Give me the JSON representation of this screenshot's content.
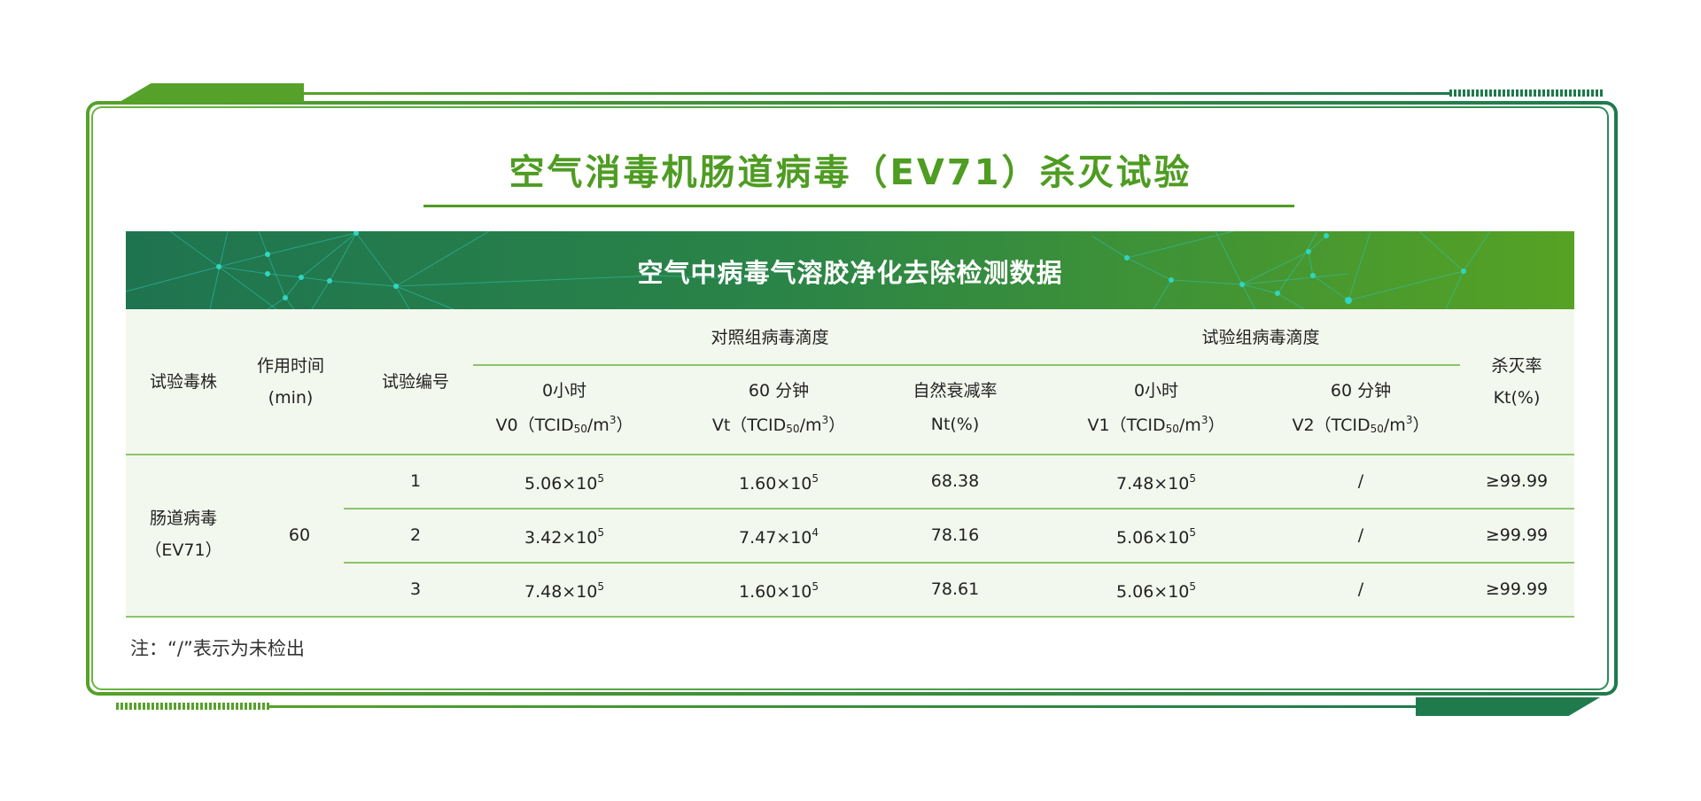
{
  "title": "空气消毒机肠道病毒（EV71）杀灭试验",
  "banner_title": "空气中病毒气溶胶净化去除检测数据",
  "colors": {
    "accent_green": "#4e9c22",
    "dark_green": "#1f7a4c",
    "table_bg": "#f3f8ee",
    "rule": "#8cc46a"
  },
  "table": {
    "headers": {
      "strain": "试验毒株",
      "time_1": "作用时间",
      "time_2": "(min)",
      "test_no": "试验编号",
      "control_group": "对照组病毒滴度",
      "test_group": "试验组病毒滴度",
      "v0_1": "0小时",
      "v0_2": "V0（TCID",
      "v0_sub": "50",
      "v0_3": "/m",
      "v0_sup": "3",
      "v0_4": "）",
      "vt_1": "60 分钟",
      "vt_2": "Vt（TCID",
      "vt_sub": "50",
      "vt_3": "/m",
      "vt_sup": "3",
      "vt_4": "）",
      "nt_1": "自然衰减率",
      "nt_2": "Nt(%)",
      "v1_1": "0小时",
      "v1_2": "V1（TCID",
      "v1_sub": "50",
      "v1_3": "/m",
      "v1_sup": "3",
      "v1_4": "）",
      "v2_1": "60 分钟",
      "v2_2": "V2（TCID",
      "v2_sub": "50",
      "v2_3": "/m",
      "v2_sup": "3",
      "v2_4": "）",
      "kt_1": "杀灭率",
      "kt_2": "Kt(%)"
    },
    "strain_1": "肠道病毒",
    "strain_2": "（EV71）",
    "time": "60",
    "rows": [
      {
        "no": "1",
        "v0": "5.06×10",
        "v0_exp": "5",
        "vt": "1.60×10",
        "vt_exp": "5",
        "nt": "68.38",
        "v1": "7.48×10",
        "v1_exp": "5",
        "v2": "/",
        "kt": "≥99.99"
      },
      {
        "no": "2",
        "v0": "3.42×10",
        "v0_exp": "5",
        "vt": "7.47×10",
        "vt_exp": "4",
        "nt": "78.16",
        "v1": "5.06×10",
        "v1_exp": "5",
        "v2": "/",
        "kt": "≥99.99"
      },
      {
        "no": "3",
        "v0": "7.48×10",
        "v0_exp": "5",
        "vt": "1.60×10",
        "vt_exp": "5",
        "nt": "78.61",
        "v1": "5.06×10",
        "v1_exp": "5",
        "v2": "/",
        "kt": "≥99.99"
      }
    ]
  },
  "note": "注：“/”表示为未检出"
}
